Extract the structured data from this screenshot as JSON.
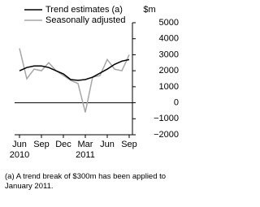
{
  "chart_data": {
    "type": "line",
    "y_unit": "$m",
    "categories": [
      "Jun",
      null,
      null,
      "Sep",
      null,
      null,
      "Dec",
      null,
      null,
      "Mar",
      null,
      null,
      "Jun",
      null,
      null,
      "Sep"
    ],
    "years": [
      "2010",
      null,
      null,
      null,
      null,
      null,
      null,
      null,
      null,
      "2011",
      null,
      null,
      null,
      null,
      null,
      null
    ],
    "series": [
      {
        "name": "Trend estimates (a)",
        "color": "#000000",
        "values": [
          2000,
          2200,
          2300,
          2300,
          2200,
          2000,
          1800,
          1450,
          1400,
          1450,
          1600,
          1850,
          2100,
          2400,
          2600,
          2700
        ]
      },
      {
        "name": "Seasonally adjusted",
        "color": "#a6a6a6",
        "values": [
          3400,
          1500,
          2100,
          2000,
          2500,
          2000,
          1700,
          1400,
          1200,
          -600,
          1600,
          1700,
          2700,
          2100,
          2000,
          3000
        ]
      }
    ],
    "ylim": [
      -2000,
      5000
    ],
    "yticks": [
      5000,
      4000,
      3000,
      2000,
      1000,
      0,
      {
        "value": -1000,
        "label": "−1000"
      },
      {
        "value": -2000,
        "label": "−2000"
      }
    ],
    "footnote": "(a) A trend break of $300m has been applied to January 2011."
  }
}
